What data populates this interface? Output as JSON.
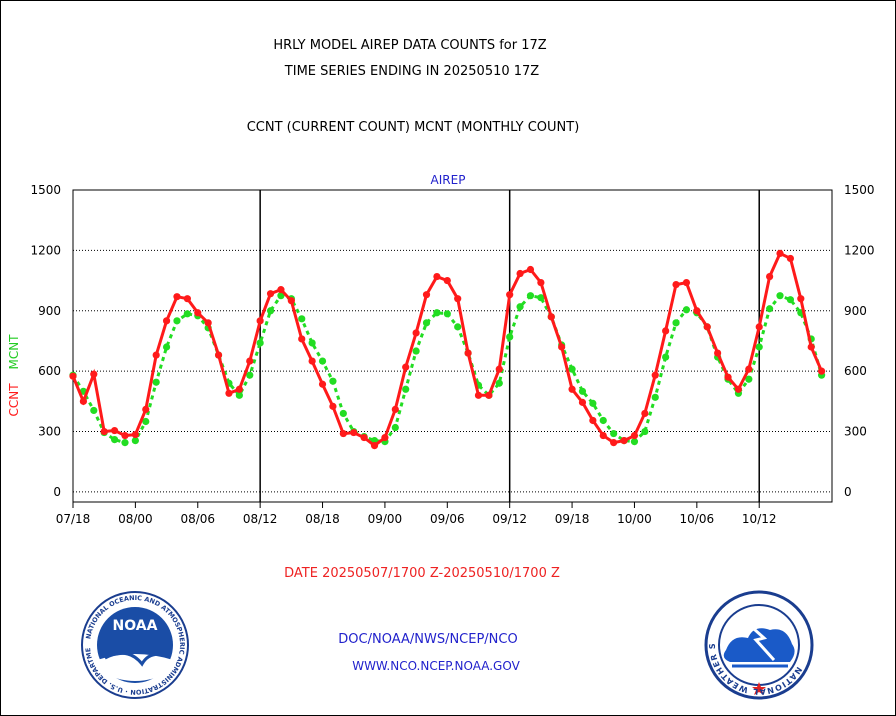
{
  "header": {
    "title_line1": "HRLY MODEL AIREP DATA COUNTS for 17Z",
    "title_line2": "TIME SERIES ENDING IN 20250510 17Z",
    "subtitle": "CCNT (CURRENT COUNT) MCNT (MONTHLY COUNT)"
  },
  "footer": {
    "date_range": "DATE 20250507/1700 Z-20250510/1700 Z",
    "org": "DOC/NOAA/NWS/NCEP/NCO",
    "url": "WWW.NCO.NCEP.NOAA.GOV"
  },
  "logos": {
    "left": {
      "name": "noaa-logo",
      "text": "NOAA",
      "ring_text": "NATIONAL OCEANIC AND ATMOSPHERIC ADMINISTRATION · U.S. DEPARTMENT OF COMMERCE"
    },
    "right": {
      "name": "nws-logo",
      "ring_text": "NATIONAL WEATHER SERVICE"
    }
  },
  "colors": {
    "ccnt": "#ff1a1a",
    "mcnt": "#22dd22",
    "label": "#2222cc",
    "date": "#ee2222"
  },
  "chart_data": {
    "type": "line",
    "title": "AIREP",
    "ylabel_left": [
      "CCNT",
      "MCNT"
    ],
    "ylim": [
      -50,
      1500
    ],
    "yticks": [
      0,
      300,
      600,
      900,
      1200,
      1500
    ],
    "ytick_labels": [
      "0",
      "300",
      "600",
      "900",
      "1200",
      "1500"
    ],
    "xlim": [
      0,
      73
    ],
    "xticks": [
      {
        "x": 0,
        "label": "07/18"
      },
      {
        "x": 6,
        "label": "08/00"
      },
      {
        "x": 12,
        "label": "08/06"
      },
      {
        "x": 18,
        "label": "08/12"
      },
      {
        "x": 24,
        "label": "08/18"
      },
      {
        "x": 30,
        "label": "09/00"
      },
      {
        "x": 36,
        "label": "09/06"
      },
      {
        "x": 42,
        "label": "09/12"
      },
      {
        "x": 48,
        "label": "09/18"
      },
      {
        "x": 54,
        "label": "10/00"
      },
      {
        "x": 60,
        "label": "10/06"
      },
      {
        "x": 66,
        "label": "10/12"
      }
    ],
    "day_boundaries": [
      18,
      42,
      66
    ],
    "grid": true,
    "series": [
      {
        "name": "CCNT",
        "color": "#ff1a1a",
        "values": [
          575,
          450,
          585,
          300,
          305,
          280,
          285,
          410,
          680,
          850,
          970,
          960,
          890,
          840,
          680,
          490,
          510,
          650,
          850,
          985,
          1005,
          950,
          760,
          650,
          535,
          425,
          290,
          295,
          270,
          230,
          270,
          410,
          620,
          790,
          980,
          1070,
          1050,
          960,
          690,
          480,
          480,
          610,
          980,
          1085,
          1105,
          1040,
          870,
          720,
          510,
          445,
          355,
          280,
          245,
          255,
          280,
          390,
          580,
          800,
          1030,
          1040,
          900,
          820,
          690,
          570,
          510,
          610,
          820,
          1070,
          1185,
          1160,
          960,
          720,
          600
        ]
      },
      {
        "name": "MCNT",
        "color": "#22dd22",
        "values": [
          580,
          500,
          405,
          295,
          260,
          245,
          255,
          350,
          545,
          720,
          850,
          885,
          875,
          815,
          680,
          540,
          480,
          580,
          740,
          900,
          975,
          960,
          860,
          740,
          650,
          550,
          390,
          300,
          275,
          255,
          250,
          320,
          510,
          700,
          840,
          890,
          885,
          820,
          690,
          530,
          480,
          540,
          770,
          920,
          975,
          965,
          870,
          730,
          610,
          500,
          440,
          355,
          290,
          255,
          250,
          300,
          470,
          670,
          840,
          905,
          890,
          820,
          670,
          560,
          490,
          560,
          720,
          910,
          975,
          955,
          890,
          760,
          580
        ]
      }
    ]
  }
}
